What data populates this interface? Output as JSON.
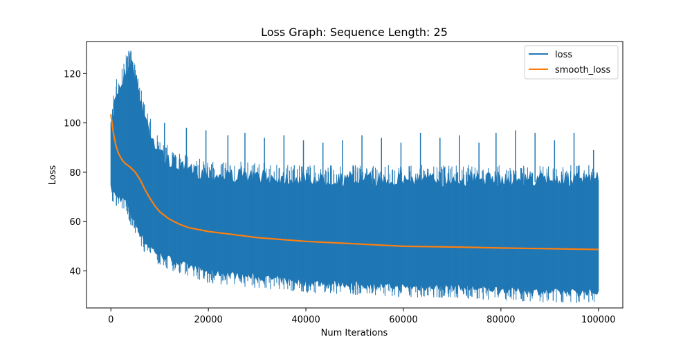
{
  "chart_data": {
    "type": "line",
    "title": "Loss Graph: Sequence Length: 25",
    "xlabel": "Num Iterations",
    "ylabel": "Loss",
    "xlim": [
      -5000,
      105000
    ],
    "ylim": [
      25,
      133
    ],
    "xticks": [
      0,
      20000,
      40000,
      60000,
      80000,
      100000
    ],
    "xtick_labels": [
      "0",
      "20000",
      "40000",
      "60000",
      "80000",
      "100000"
    ],
    "yticks": [
      40,
      60,
      80,
      100,
      120
    ],
    "ytick_labels": [
      "40",
      "60",
      "80",
      "100",
      "120"
    ],
    "grid": false,
    "legend_position": "top-right",
    "colors": {
      "loss": "#1f77b4",
      "smooth_loss": "#ff7f0e"
    },
    "series": [
      {
        "name": "loss",
        "envelope": {
          "x": [
            0,
            1000,
            2000,
            3000,
            4000,
            5000,
            7000,
            10000,
            15000,
            20000,
            30000,
            40000,
            50000,
            60000,
            70000,
            80000,
            90000,
            100000
          ],
          "upper": [
            100,
            115,
            118,
            124,
            128,
            122,
            105,
            90,
            84,
            82,
            81,
            80,
            80,
            80,
            80,
            80,
            80,
            80
          ],
          "lower": [
            72,
            69,
            68,
            67,
            62,
            58,
            50,
            45,
            41,
            38,
            36,
            34,
            33,
            32,
            32,
            31,
            30,
            30
          ],
          "spikes": [
            {
              "x": 7500,
              "y": 94
            },
            {
              "x": 11000,
              "y": 100
            },
            {
              "x": 15500,
              "y": 98
            },
            {
              "x": 19500,
              "y": 97
            },
            {
              "x": 24000,
              "y": 95
            },
            {
              "x": 27500,
              "y": 96
            },
            {
              "x": 31500,
              "y": 94
            },
            {
              "x": 35500,
              "y": 95
            },
            {
              "x": 39500,
              "y": 93
            },
            {
              "x": 43500,
              "y": 92
            },
            {
              "x": 47500,
              "y": 93
            },
            {
              "x": 51500,
              "y": 95
            },
            {
              "x": 55500,
              "y": 94
            },
            {
              "x": 59500,
              "y": 92
            },
            {
              "x": 63500,
              "y": 96
            },
            {
              "x": 67500,
              "y": 94
            },
            {
              "x": 71500,
              "y": 95
            },
            {
              "x": 75500,
              "y": 92
            },
            {
              "x": 79000,
              "y": 96
            },
            {
              "x": 83000,
              "y": 97
            },
            {
              "x": 87000,
              "y": 96
            },
            {
              "x": 91000,
              "y": 93
            },
            {
              "x": 95000,
              "y": 96
            },
            {
              "x": 99000,
              "y": 89
            }
          ]
        }
      },
      {
        "name": "smooth_loss",
        "x": [
          0,
          500,
          1000,
          1500,
          2000,
          2500,
          3000,
          4000,
          5000,
          6000,
          7000,
          8000,
          9000,
          10000,
          12000,
          14000,
          16000,
          20000,
          25000,
          30000,
          40000,
          50000,
          60000,
          70000,
          80000,
          90000,
          100000
        ],
        "values": [
          103.5,
          96,
          91,
          88,
          86,
          84.5,
          83.5,
          82,
          80,
          77,
          73,
          69.5,
          66.5,
          64,
          61,
          59,
          57.5,
          56,
          54.8,
          53.5,
          52,
          51,
          50,
          49.7,
          49.3,
          49,
          48.7
        ]
      }
    ]
  }
}
